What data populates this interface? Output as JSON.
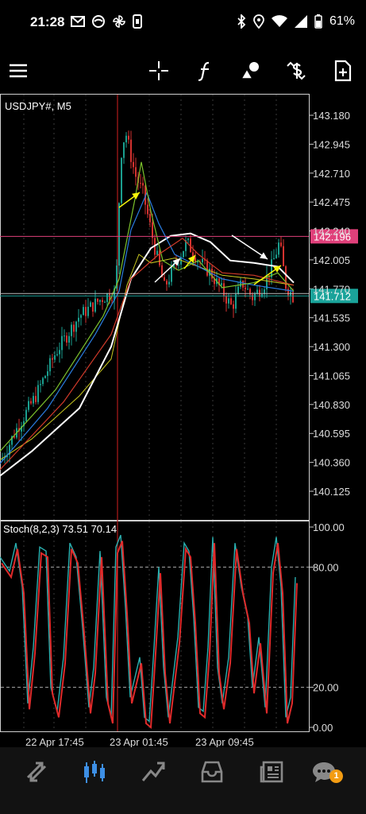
{
  "status_bar": {
    "time": "21:28",
    "battery": "61%",
    "left_icons": [
      "gmail-icon",
      "app-icon",
      "pinwheel-icon",
      "phone-icon"
    ],
    "right_icons": [
      "bluetooth-icon",
      "location-icon",
      "wifi-icon",
      "signal-icon",
      "battery-icon"
    ]
  },
  "toolbar": {
    "items": [
      "menu-icon",
      "crosshair-icon",
      "function-icon",
      "objects-icon",
      "trade-icon",
      "new-chart-icon"
    ]
  },
  "chart": {
    "symbol_label": "USDJPY#, M5",
    "price_ticks": [
      "143.180",
      "142.945",
      "142.710",
      "142.475",
      "142.240",
      "142.005",
      "141.770",
      "141.535",
      "141.300",
      "141.065",
      "140.830",
      "140.595",
      "140.360",
      "140.125"
    ],
    "price_tags": [
      {
        "value": "142.196",
        "color": "#e0407a"
      },
      {
        "value": "141.712",
        "color": "#1aa39a"
      }
    ],
    "time_labels": [
      "22 Apr 17:45",
      "23 Apr 01:45",
      "23 Apr 09:45"
    ],
    "colors": {
      "bull": "#1a9f8f",
      "bear": "#d5322f",
      "ma_white": "#ffffff",
      "ma_green": "#7cc22c",
      "ma_blue": "#2a7de1",
      "ma_red": "#d13a2a",
      "ma_yellow": "#c8c820",
      "arrow_yellow": "#f5f50a"
    }
  },
  "stoch": {
    "label": "Stoch(8,2,3) 73.51 70.14",
    "levels": [
      "100.00",
      "80.00",
      "20.00",
      "0.00"
    ]
  },
  "bottom_nav": {
    "items": [
      {
        "name": "quotes-icon",
        "active": false
      },
      {
        "name": "chart-icon",
        "active": true
      },
      {
        "name": "trade-nav-icon",
        "active": false
      },
      {
        "name": "history-icon",
        "active": false
      },
      {
        "name": "news-icon",
        "active": false
      },
      {
        "name": "chat-icon",
        "active": false
      }
    ],
    "chat_badge": "1"
  }
}
